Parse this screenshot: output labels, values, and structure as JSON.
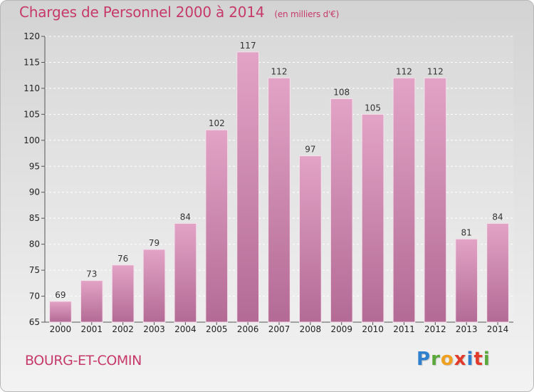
{
  "header": {
    "title": "Charges de Personnel 2000 à 2014",
    "subtitle": "(en milliers d'€)"
  },
  "footer": {
    "commune": "BOURG-ET-COMIN",
    "logo": [
      "P",
      "r",
      "o",
      "x",
      "i",
      "t",
      "i"
    ]
  },
  "colors": {
    "accent": "#c6396b",
    "bar_light": "#e2a3c6",
    "bar_dark": "#b36b95",
    "logo": [
      "#2f7fcf",
      "#5aa83c",
      "#f0a020",
      "#e23a2b",
      "#2f7fcf",
      "#e23a2b",
      "#5aa83c"
    ]
  },
  "chart_data": {
    "type": "bar",
    "categories": [
      "2000",
      "2001",
      "2002",
      "2003",
      "2004",
      "2005",
      "2006",
      "2007",
      "2008",
      "2009",
      "2010",
      "2011",
      "2012",
      "2013",
      "2014"
    ],
    "values": [
      69,
      73,
      76,
      79,
      84,
      102,
      117,
      112,
      97,
      108,
      105,
      112,
      112,
      81,
      84
    ],
    "ylim": [
      65,
      120
    ],
    "yticks": [
      65,
      70,
      75,
      80,
      85,
      90,
      95,
      100,
      105,
      110,
      115,
      120
    ],
    "grid": true,
    "legend": "none"
  }
}
